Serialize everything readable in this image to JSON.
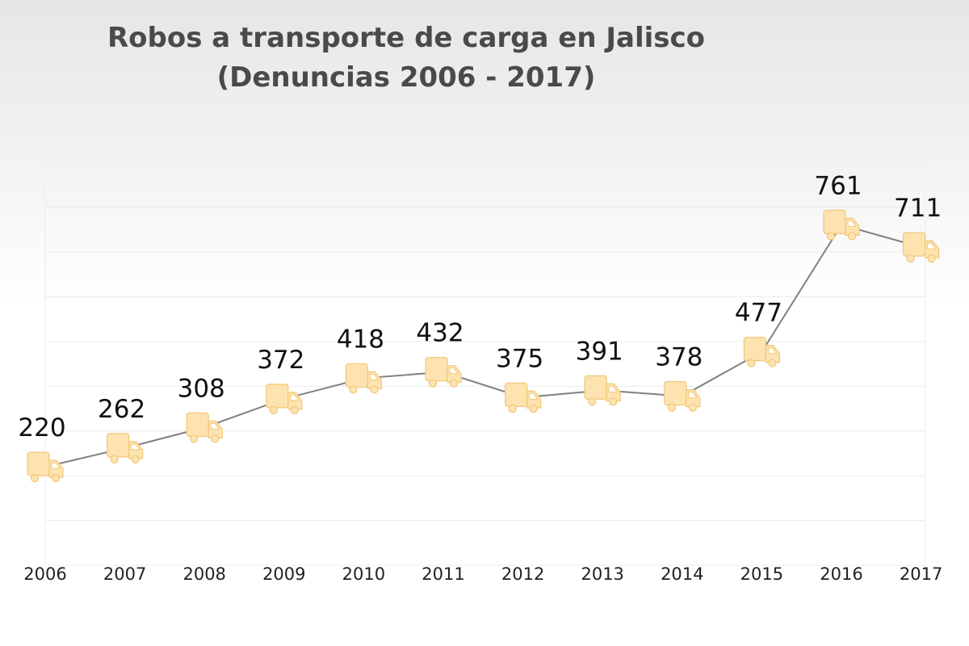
{
  "chart_data": {
    "type": "line",
    "title": "Robos a transporte de carga en Jalisco",
    "subtitle": "(Denuncias 2006 - 2017)",
    "xlabel": "",
    "ylabel": "",
    "categories": [
      "2006",
      "2007",
      "2008",
      "2009",
      "2010",
      "2011",
      "2012",
      "2013",
      "2014",
      "2015",
      "2016",
      "2017"
    ],
    "series": [
      {
        "name": "Denuncias",
        "values": [
          220,
          262,
          308,
          372,
          418,
          432,
          375,
          391,
          378,
          477,
          761,
          711
        ]
      }
    ],
    "ylim": [
      0,
      1000
    ],
    "grid": true,
    "legend": "none",
    "marker_icon": "truck-icon",
    "colors": {
      "line": "#808080",
      "marker_fill": "#fde3b0",
      "marker_stroke": "#f2c777",
      "title": "#4a4a4a",
      "labels": "#111111"
    }
  }
}
